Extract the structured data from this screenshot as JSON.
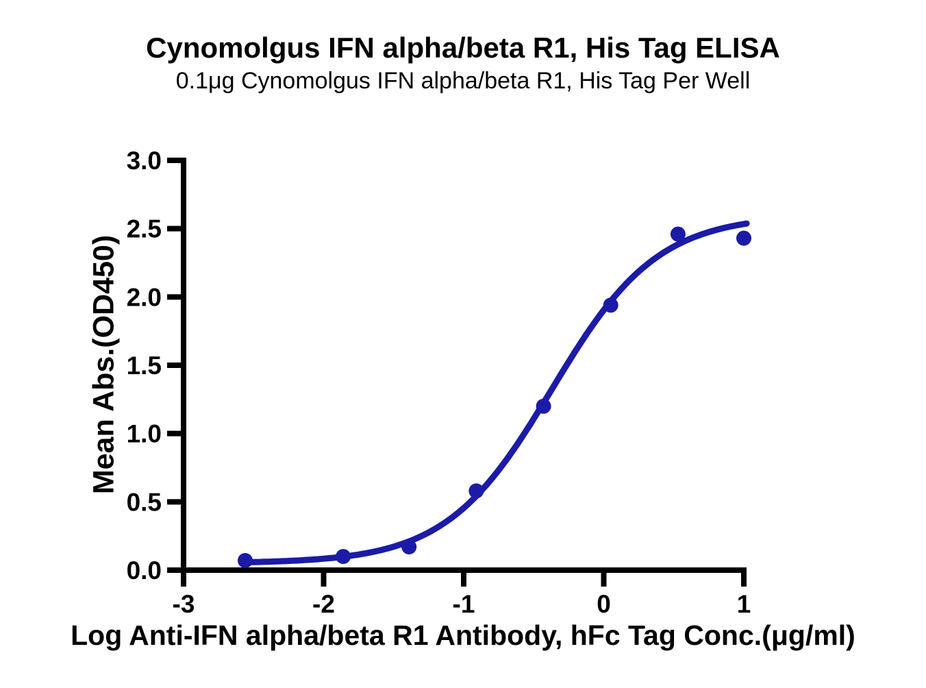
{
  "chart_data": {
    "type": "scatter",
    "title": "Cynomolgus IFN alpha/beta R1, His Tag ELISA",
    "subtitle": "0.1μg Cynomolgus IFN alpha/beta R1, His Tag Per Well",
    "xlabel": "Log Anti-IFN alpha/beta R1 Antibody, hFc Tag Conc.(μg/ml)",
    "ylabel": "Mean Abs.(OD450)",
    "xlim": [
      -3,
      1
    ],
    "ylim": [
      0,
      3
    ],
    "x_ticks": [
      "-3",
      "-2",
      "-1",
      "0",
      "1"
    ],
    "y_ticks": [
      "0.0",
      "0.5",
      "1.0",
      "1.5",
      "2.0",
      "2.5",
      "3.0"
    ],
    "grid": false,
    "legend": "none",
    "accent_color": "#1b1ba8",
    "axis_color": "#000000",
    "series": [
      {
        "name": "Mean Abs.(OD450) data points",
        "type": "scatter",
        "x": [
          -2.56,
          -1.86,
          -1.39,
          -0.91,
          -0.43,
          0.05,
          0.53,
          1.0
        ],
        "y": [
          0.07,
          0.1,
          0.17,
          0.58,
          1.2,
          1.94,
          2.46,
          2.43
        ]
      },
      {
        "name": "4PL sigmoidal fit curve",
        "type": "line",
        "fit_4pl": {
          "bottom": 0.05,
          "top": 2.6,
          "logEC50": -0.37,
          "hillslope": 1.15
        },
        "x_start": -2.56,
        "x_end": 1.02
      }
    ]
  }
}
